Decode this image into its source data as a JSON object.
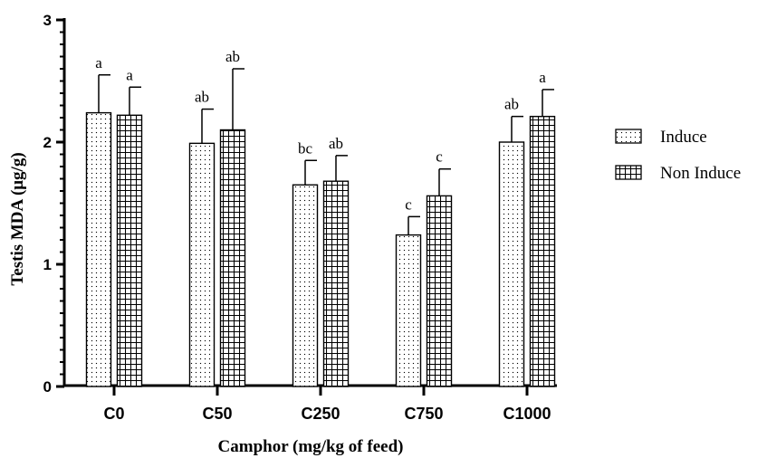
{
  "chart_data": {
    "type": "bar",
    "xlabel": "Camphor (mg/kg of feed)",
    "ylabel": "Testis MDA (μg/g)",
    "ylim": [
      0,
      3
    ],
    "yticks": [
      "0",
      "1",
      "2",
      "3"
    ],
    "grid": false,
    "legend_position": "right",
    "categories": [
      "C0",
      "C50",
      "C250",
      "C750",
      "C1000"
    ],
    "series": [
      {
        "name": "Induce",
        "pattern": "dots",
        "values": [
          2.24,
          1.99,
          1.65,
          1.24,
          2.0
        ],
        "errors": [
          0.31,
          0.28,
          0.2,
          0.15,
          0.21
        ],
        "letters": [
          "a",
          "ab",
          "bc",
          "c",
          "ab"
        ]
      },
      {
        "name": "Non Induce",
        "pattern": "grid",
        "values": [
          2.22,
          2.1,
          1.68,
          1.56,
          2.21
        ],
        "errors": [
          0.23,
          0.5,
          0.21,
          0.22,
          0.22
        ],
        "letters": [
          "a",
          "ab",
          "ab",
          "c",
          "a"
        ]
      }
    ]
  }
}
